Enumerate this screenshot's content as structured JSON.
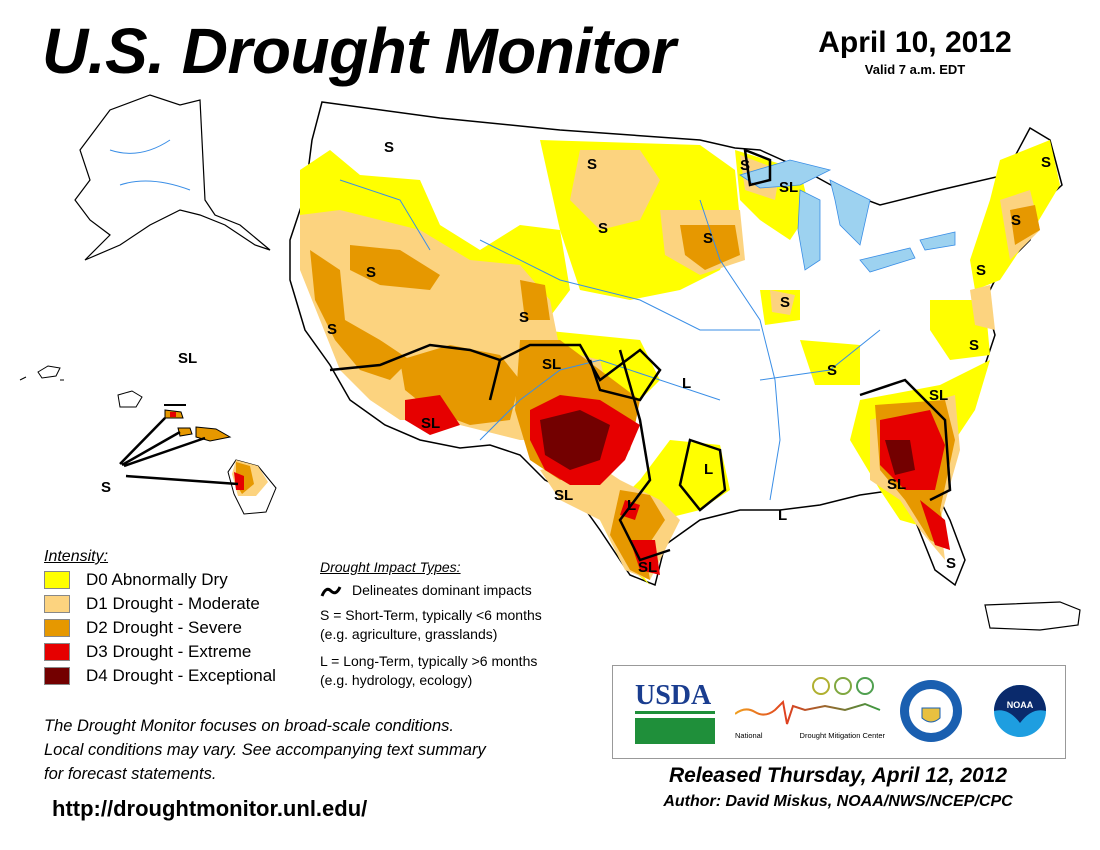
{
  "header": {
    "title": "U.S. Drought Monitor",
    "date": "April 10, 2012",
    "valid": "Valid 7 a.m. EDT"
  },
  "legend": {
    "heading": "Intensity:",
    "items": [
      {
        "label": "D0 Abnormally Dry",
        "color": "#ffff00"
      },
      {
        "label": "D1 Drought - Moderate",
        "color": "#fcd37f"
      },
      {
        "label": "D2 Drought - Severe",
        "color": "#e69800"
      },
      {
        "label": "D3 Drought - Extreme",
        "color": "#e60000"
      },
      {
        "label": "D4 Drought - Exceptional",
        "color": "#730000"
      }
    ]
  },
  "impact": {
    "heading": "Drought Impact Types:",
    "delineates": "Delineates dominant impacts",
    "short_line1": "S = Short-Term, typically <6 months",
    "short_line2": "(e.g. agriculture, grasslands)",
    "long_line1": "L = Long-Term, typically >6 months",
    "long_line2": "(e.g. hydrology, ecology)"
  },
  "map_labels": [
    "S",
    "S",
    "S",
    "S",
    "S",
    "SL",
    "S",
    "S",
    "S",
    "S",
    "S",
    "S",
    "S",
    "SL",
    "L",
    "S",
    "SL",
    "SL",
    "L",
    "L",
    "SL",
    "SL",
    "L",
    "SL",
    "S",
    "S",
    "SL",
    "S"
  ],
  "note": [
    "The Drought Monitor focuses on broad-scale conditions.",
    "Local conditions may vary. See accompanying text summary",
    "for forecast statements."
  ],
  "url": "http://droughtmonitor.unl.edu/",
  "logos": {
    "usda": "USDA",
    "ndmc_left": "National",
    "ndmc_right": "Drought Mitigation Center",
    "noaa": "NOAA"
  },
  "footer": {
    "released": "Released Thursday, April 12, 2012",
    "author": "Author: David Miskus, NOAA/NWS/NCEP/CPC"
  }
}
